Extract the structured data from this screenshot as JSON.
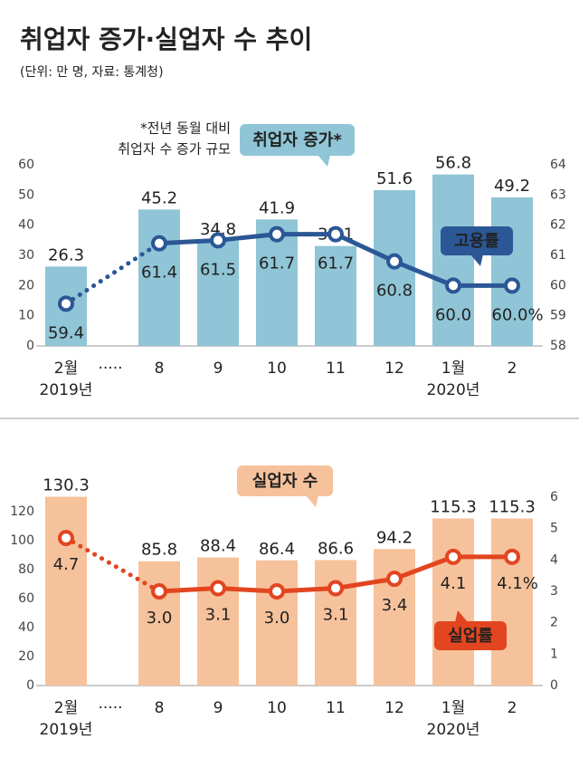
{
  "title": "취업자 증가·실업자 수 추이",
  "subtitle": "(단위: 만 명, 자료: 통계청)",
  "chart_data": [
    {
      "type": "bar",
      "categories": [
        "2월",
        "·····",
        "8",
        "9",
        "10",
        "11",
        "12",
        "1월",
        "2"
      ],
      "category_years": [
        "2019년",
        null,
        null,
        null,
        null,
        null,
        null,
        "2020년",
        null
      ],
      "annotation": [
        "*전년 동월 대비",
        "취업자 수 증가 규모"
      ],
      "ylim": [
        0,
        60
      ],
      "yticks": [
        0,
        10,
        20,
        30,
        40,
        50,
        60
      ],
      "y2lim": [
        58,
        64
      ],
      "y2ticks": [
        58,
        59,
        60,
        61,
        62,
        63,
        64
      ],
      "series": [
        {
          "name": "취업자 증가*",
          "type": "bar",
          "color": "#8fc5d6",
          "values": [
            26.3,
            null,
            45.2,
            34.8,
            41.9,
            33.1,
            51.6,
            56.8,
            49.2
          ]
        },
        {
          "name": "고용률",
          "type": "line",
          "axis": "y2",
          "color": "#2b5796",
          "values": [
            59.4,
            null,
            61.4,
            61.5,
            61.7,
            61.7,
            60.8,
            60.0,
            60.0
          ],
          "value_labels": [
            "59.4",
            null,
            "61.4",
            "61.5",
            "61.7",
            "61.7",
            "60.8",
            "60.0",
            "60.0%"
          ]
        }
      ]
    },
    {
      "type": "bar",
      "categories": [
        "2월",
        "·····",
        "8",
        "9",
        "10",
        "11",
        "12",
        "1월",
        "2"
      ],
      "category_years": [
        "2019년",
        null,
        null,
        null,
        null,
        null,
        null,
        "2020년",
        null
      ],
      "ylim": [
        0,
        130
      ],
      "yticks": [
        0,
        20,
        40,
        60,
        80,
        100,
        120
      ],
      "y2lim": [
        0,
        6
      ],
      "y2ticks": [
        0,
        1,
        2,
        3,
        4,
        5,
        6
      ],
      "series": [
        {
          "name": "실업자 수",
          "type": "bar",
          "color": "#f6c29b",
          "values": [
            130.3,
            null,
            85.8,
            88.4,
            86.4,
            86.6,
            94.2,
            115.3,
            115.3
          ]
        },
        {
          "name": "실업률",
          "type": "line",
          "axis": "y2",
          "color": "#e2451f",
          "values": [
            4.7,
            null,
            3.0,
            3.1,
            3.0,
            3.1,
            3.4,
            4.1,
            4.1
          ],
          "value_labels": [
            "4.7",
            null,
            "3.0",
            "3.1",
            "3.0",
            "3.1",
            "3.4",
            "4.1",
            "4.1%"
          ]
        }
      ]
    }
  ]
}
